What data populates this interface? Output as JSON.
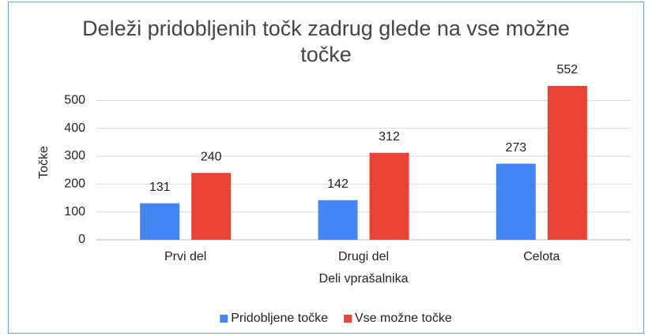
{
  "chart_data": {
    "type": "bar",
    "title": "Deleži pridobljenih točk zadrug glede na vse možne točke",
    "x_label": "Deli vprašalnika",
    "y_label": "Točke",
    "categories": [
      "Prvi del",
      "Drugi del",
      "Celota"
    ],
    "series": [
      {
        "name": "Pridobljene točke",
        "color": "#4285f4",
        "values": [
          131,
          142,
          273
        ]
      },
      {
        "name": "Vse možne točke",
        "color": "#ea4335",
        "values": [
          240,
          312,
          552
        ]
      }
    ],
    "ylim": [
      0,
      600
    ],
    "yticks": [
      0,
      100,
      200,
      300,
      400,
      500
    ],
    "grid": true,
    "legend": "bottom"
  }
}
